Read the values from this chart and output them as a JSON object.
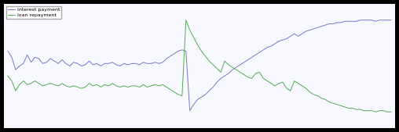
{
  "legend_labels": [
    "Interest payment",
    "loan repayment"
  ],
  "line_colors": [
    "#7777cc",
    "#55aa55"
  ],
  "background_color": "#f8f8ff",
  "outer_background": "#000000",
  "grid": true,
  "grid_color": "#ccccdd",
  "figsize": [
    5.08,
    1.69
  ],
  "dpi": 100,
  "legend_fontsize": 4.5,
  "legend_loc": "upper left",
  "blue_data": [
    0.62,
    0.57,
    0.47,
    0.5,
    0.52,
    0.59,
    0.53,
    0.57,
    0.56,
    0.52,
    0.53,
    0.56,
    0.54,
    0.52,
    0.55,
    0.52,
    0.5,
    0.53,
    0.52,
    0.5,
    0.51,
    0.54,
    0.51,
    0.52,
    0.5,
    0.52,
    0.52,
    0.53,
    0.51,
    0.5,
    0.52,
    0.51,
    0.52,
    0.52,
    0.51,
    0.53,
    0.52,
    0.52,
    0.53,
    0.52,
    0.53,
    0.56,
    0.58,
    0.6,
    0.62,
    0.63,
    0.62,
    0.14,
    0.19,
    0.23,
    0.25,
    0.27,
    0.3,
    0.33,
    0.37,
    0.4,
    0.42,
    0.44,
    0.47,
    0.49,
    0.51,
    0.53,
    0.55,
    0.57,
    0.59,
    0.61,
    0.63,
    0.65,
    0.66,
    0.68,
    0.7,
    0.71,
    0.72,
    0.74,
    0.76,
    0.74,
    0.76,
    0.78,
    0.79,
    0.8,
    0.81,
    0.82,
    0.83,
    0.84,
    0.84,
    0.85,
    0.85,
    0.86,
    0.86,
    0.86,
    0.86,
    0.87,
    0.87,
    0.87,
    0.87,
    0.86,
    0.87,
    0.87,
    0.87,
    0.87
  ],
  "green_data": [
    0.42,
    0.38,
    0.3,
    0.35,
    0.38,
    0.35,
    0.36,
    0.38,
    0.36,
    0.34,
    0.35,
    0.36,
    0.35,
    0.34,
    0.36,
    0.34,
    0.33,
    0.34,
    0.33,
    0.32,
    0.33,
    0.36,
    0.34,
    0.35,
    0.33,
    0.35,
    0.34,
    0.36,
    0.34,
    0.33,
    0.34,
    0.33,
    0.34,
    0.34,
    0.33,
    0.35,
    0.33,
    0.34,
    0.35,
    0.34,
    0.35,
    0.33,
    0.31,
    0.29,
    0.27,
    0.26,
    0.87,
    0.79,
    0.73,
    0.67,
    0.62,
    0.58,
    0.54,
    0.51,
    0.48,
    0.45,
    0.54,
    0.51,
    0.49,
    0.47,
    0.45,
    0.43,
    0.41,
    0.4,
    0.44,
    0.45,
    0.4,
    0.38,
    0.36,
    0.34,
    0.36,
    0.37,
    0.32,
    0.3,
    0.38,
    0.36,
    0.34,
    0.32,
    0.29,
    0.27,
    0.26,
    0.24,
    0.23,
    0.21,
    0.2,
    0.19,
    0.18,
    0.17,
    0.16,
    0.16,
    0.15,
    0.15,
    0.14,
    0.14,
    0.14,
    0.13,
    0.14,
    0.14,
    0.13,
    0.13
  ]
}
